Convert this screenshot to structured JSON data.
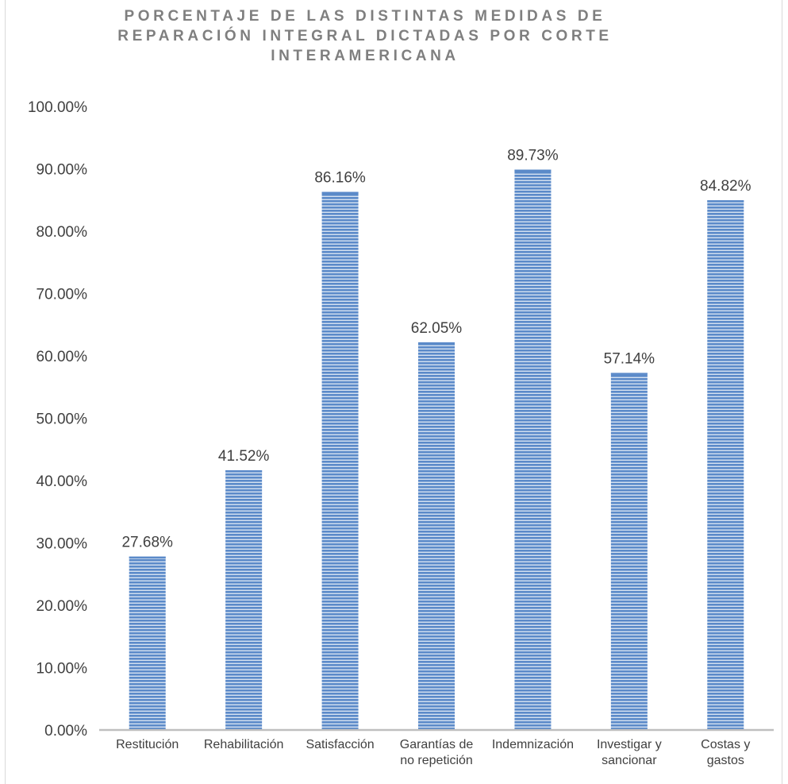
{
  "chart_data": {
    "type": "bar",
    "title": "PORCENTAJE DE LAS DISTINTAS MEDIDAS DE REPARACIÓN INTEGRAL DICTADAS POR CORTE INTERAMERICANA",
    "xlabel": "",
    "ylabel": "",
    "ylim": [
      0,
      100
    ],
    "yticks": [
      "0.00%",
      "10.00%",
      "20.00%",
      "30.00%",
      "40.00%",
      "50.00%",
      "60.00%",
      "70.00%",
      "80.00%",
      "90.00%",
      "100.00%"
    ],
    "categories": [
      [
        "Restitución"
      ],
      [
        "Rehabilitación"
      ],
      [
        "Satisfacción"
      ],
      [
        "Garantías de",
        "no repetición"
      ],
      [
        "Indemnización"
      ],
      [
        "Investigar y",
        "sancionar"
      ],
      [
        "Costas y",
        "gastos"
      ]
    ],
    "values": [
      27.68,
      41.52,
      86.16,
      62.05,
      89.73,
      57.14,
      84.82
    ],
    "data_labels": [
      "27.68%",
      "41.52%",
      "86.16%",
      "62.05%",
      "89.73%",
      "57.14%",
      "84.82%"
    ],
    "grid": false,
    "legend": "none",
    "bar_color": "#5b8ac9",
    "bar_stripe_color": "#ffffff",
    "axis_color": "#bfbfbf",
    "label_color": "#404040",
    "title_color": "#7f7f7f"
  }
}
